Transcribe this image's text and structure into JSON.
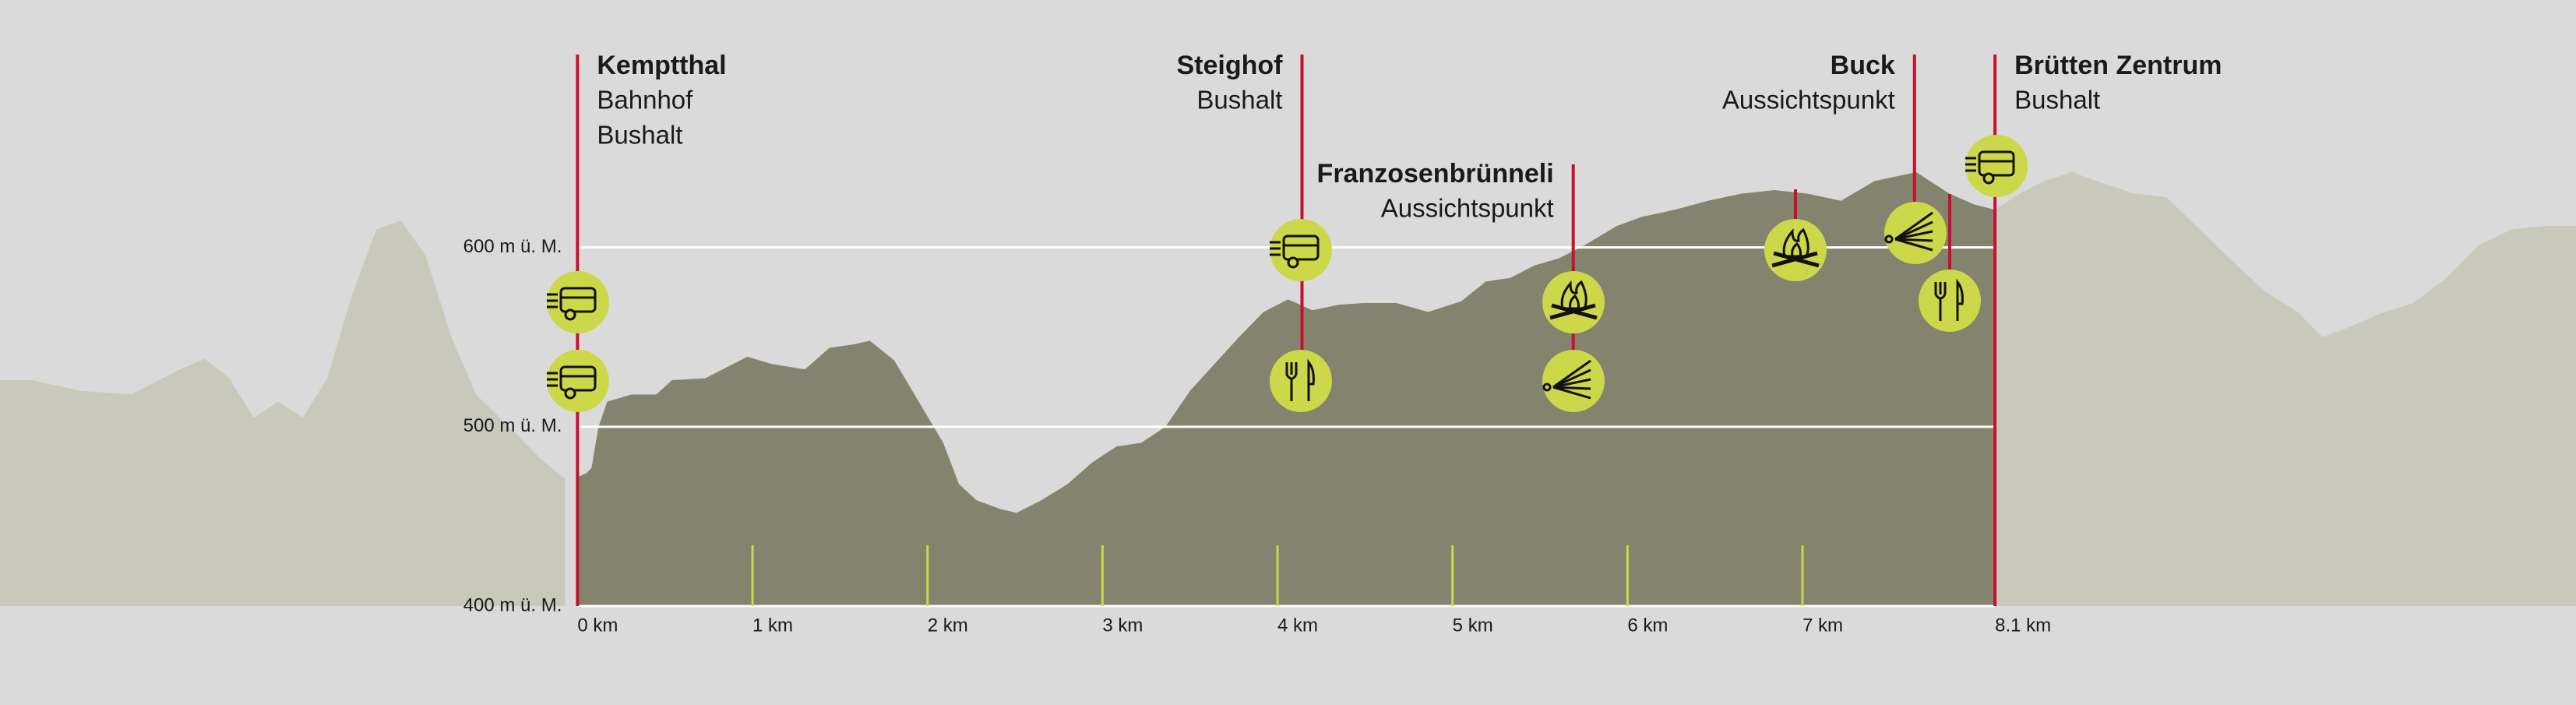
{
  "chart_data": {
    "type": "area",
    "xlim": [
      -3.3,
      11.42
    ],
    "ylim": [
      400,
      738
    ],
    "xticks": [
      {
        "value": 0,
        "label": "0 km"
      },
      {
        "value": 1,
        "label": "1 km"
      },
      {
        "value": 2,
        "label": "2 km"
      },
      {
        "value": 3,
        "label": "3 km"
      },
      {
        "value": 4,
        "label": "4 km"
      },
      {
        "value": 5,
        "label": "5 km"
      },
      {
        "value": 6,
        "label": "6 km"
      },
      {
        "value": 7,
        "label": "7 km"
      },
      {
        "value": 8.1,
        "label": "8.1 km"
      }
    ],
    "yticks": [
      {
        "value": 400,
        "label": "400 m ü. M."
      },
      {
        "value": 500,
        "label": "500 m ü. M."
      },
      {
        "value": 600,
        "label": "600 m ü. M."
      }
    ],
    "grid": true,
    "series": [
      {
        "color": "#c9c9bb",
        "x": [
          -3.3,
          -3.12,
          -2.84,
          -2.55,
          -2.27,
          -2.13,
          -1.99,
          -1.85,
          -1.71,
          -1.57,
          -1.43,
          -1.29,
          -1.15,
          -1.01,
          -0.87,
          -0.72,
          -0.58,
          -0.39,
          -0.21,
          -0.07,
          null,
          8.1,
          8.24,
          8.38,
          8.54,
          8.71,
          8.9,
          9.08,
          9.27,
          9.46,
          9.65,
          9.83,
          9.97,
          10.11,
          10.3,
          10.49,
          10.68,
          10.86,
          11.05,
          11.24,
          11.42
        ],
        "values": [
          526,
          526,
          520,
          518,
          532,
          538,
          527,
          505,
          514,
          505,
          527,
          573,
          610,
          615,
          596,
          550,
          518,
          500,
          482,
          471,
          null,
          621,
          630,
          637,
          642,
          636,
          630,
          628,
          610,
          592,
          575,
          564,
          550,
          555,
          563,
          569,
          583,
          601,
          610,
          612,
          612
        ]
      },
      {
        "color": "#83836e",
        "x": [
          0,
          0.05,
          0.08,
          0.12,
          0.17,
          0.31,
          0.45,
          0.54,
          0.73,
          0.83,
          0.97,
          1.11,
          1.3,
          1.44,
          1.58,
          1.67,
          1.81,
          1.95,
          2.09,
          2.18,
          2.28,
          2.42,
          2.51,
          2.65,
          2.8,
          2.94,
          3.08,
          3.22,
          3.36,
          3.5,
          3.64,
          3.78,
          3.92,
          4.06,
          4.2,
          4.35,
          4.49,
          4.68,
          4.86,
          5.05,
          5.19,
          5.33,
          5.47,
          5.61,
          5.75,
          5.94,
          6.08,
          6.27,
          6.46,
          6.65,
          6.84,
          7.03,
          7.22,
          7.41,
          7.65,
          7.84,
          7.98,
          8.1
        ],
        "values": [
          472,
          474,
          477,
          500,
          514,
          518,
          518,
          526,
          527,
          532,
          539,
          535,
          532,
          544,
          546,
          548,
          537,
          514,
          491,
          468,
          459,
          454,
          452,
          459,
          468,
          480,
          489,
          491,
          500,
          520,
          535,
          550,
          564,
          571,
          565,
          568,
          569,
          569,
          564,
          570,
          581,
          583,
          590,
          594,
          601,
          612,
          617,
          621,
          626,
          630,
          632,
          630,
          626,
          637,
          642,
          630,
          624,
          621
        ]
      }
    ],
    "stops": [
      {
        "name": "Kemptthal",
        "details": [
          "Bahnhof",
          "Bushalt"
        ],
        "km": 0,
        "align": "left"
      },
      {
        "name": "Steighof",
        "details": [
          "Bushalt"
        ],
        "km": 4.14,
        "align": "right"
      },
      {
        "name": "Franzosenbrünneli",
        "details": [
          "Aussichtspunkt"
        ],
        "km": 5.69,
        "align": "right"
      },
      {
        "name": "Buck",
        "details": [
          "Aussichtspunkt"
        ],
        "km": 7.64,
        "align": "right"
      },
      {
        "name": "Brütten Zentrum",
        "details": [
          "Bushalt"
        ],
        "km": 8.1,
        "align": "left"
      }
    ],
    "stop_color": "#c8102e",
    "icon_color": "#ccd74a"
  }
}
